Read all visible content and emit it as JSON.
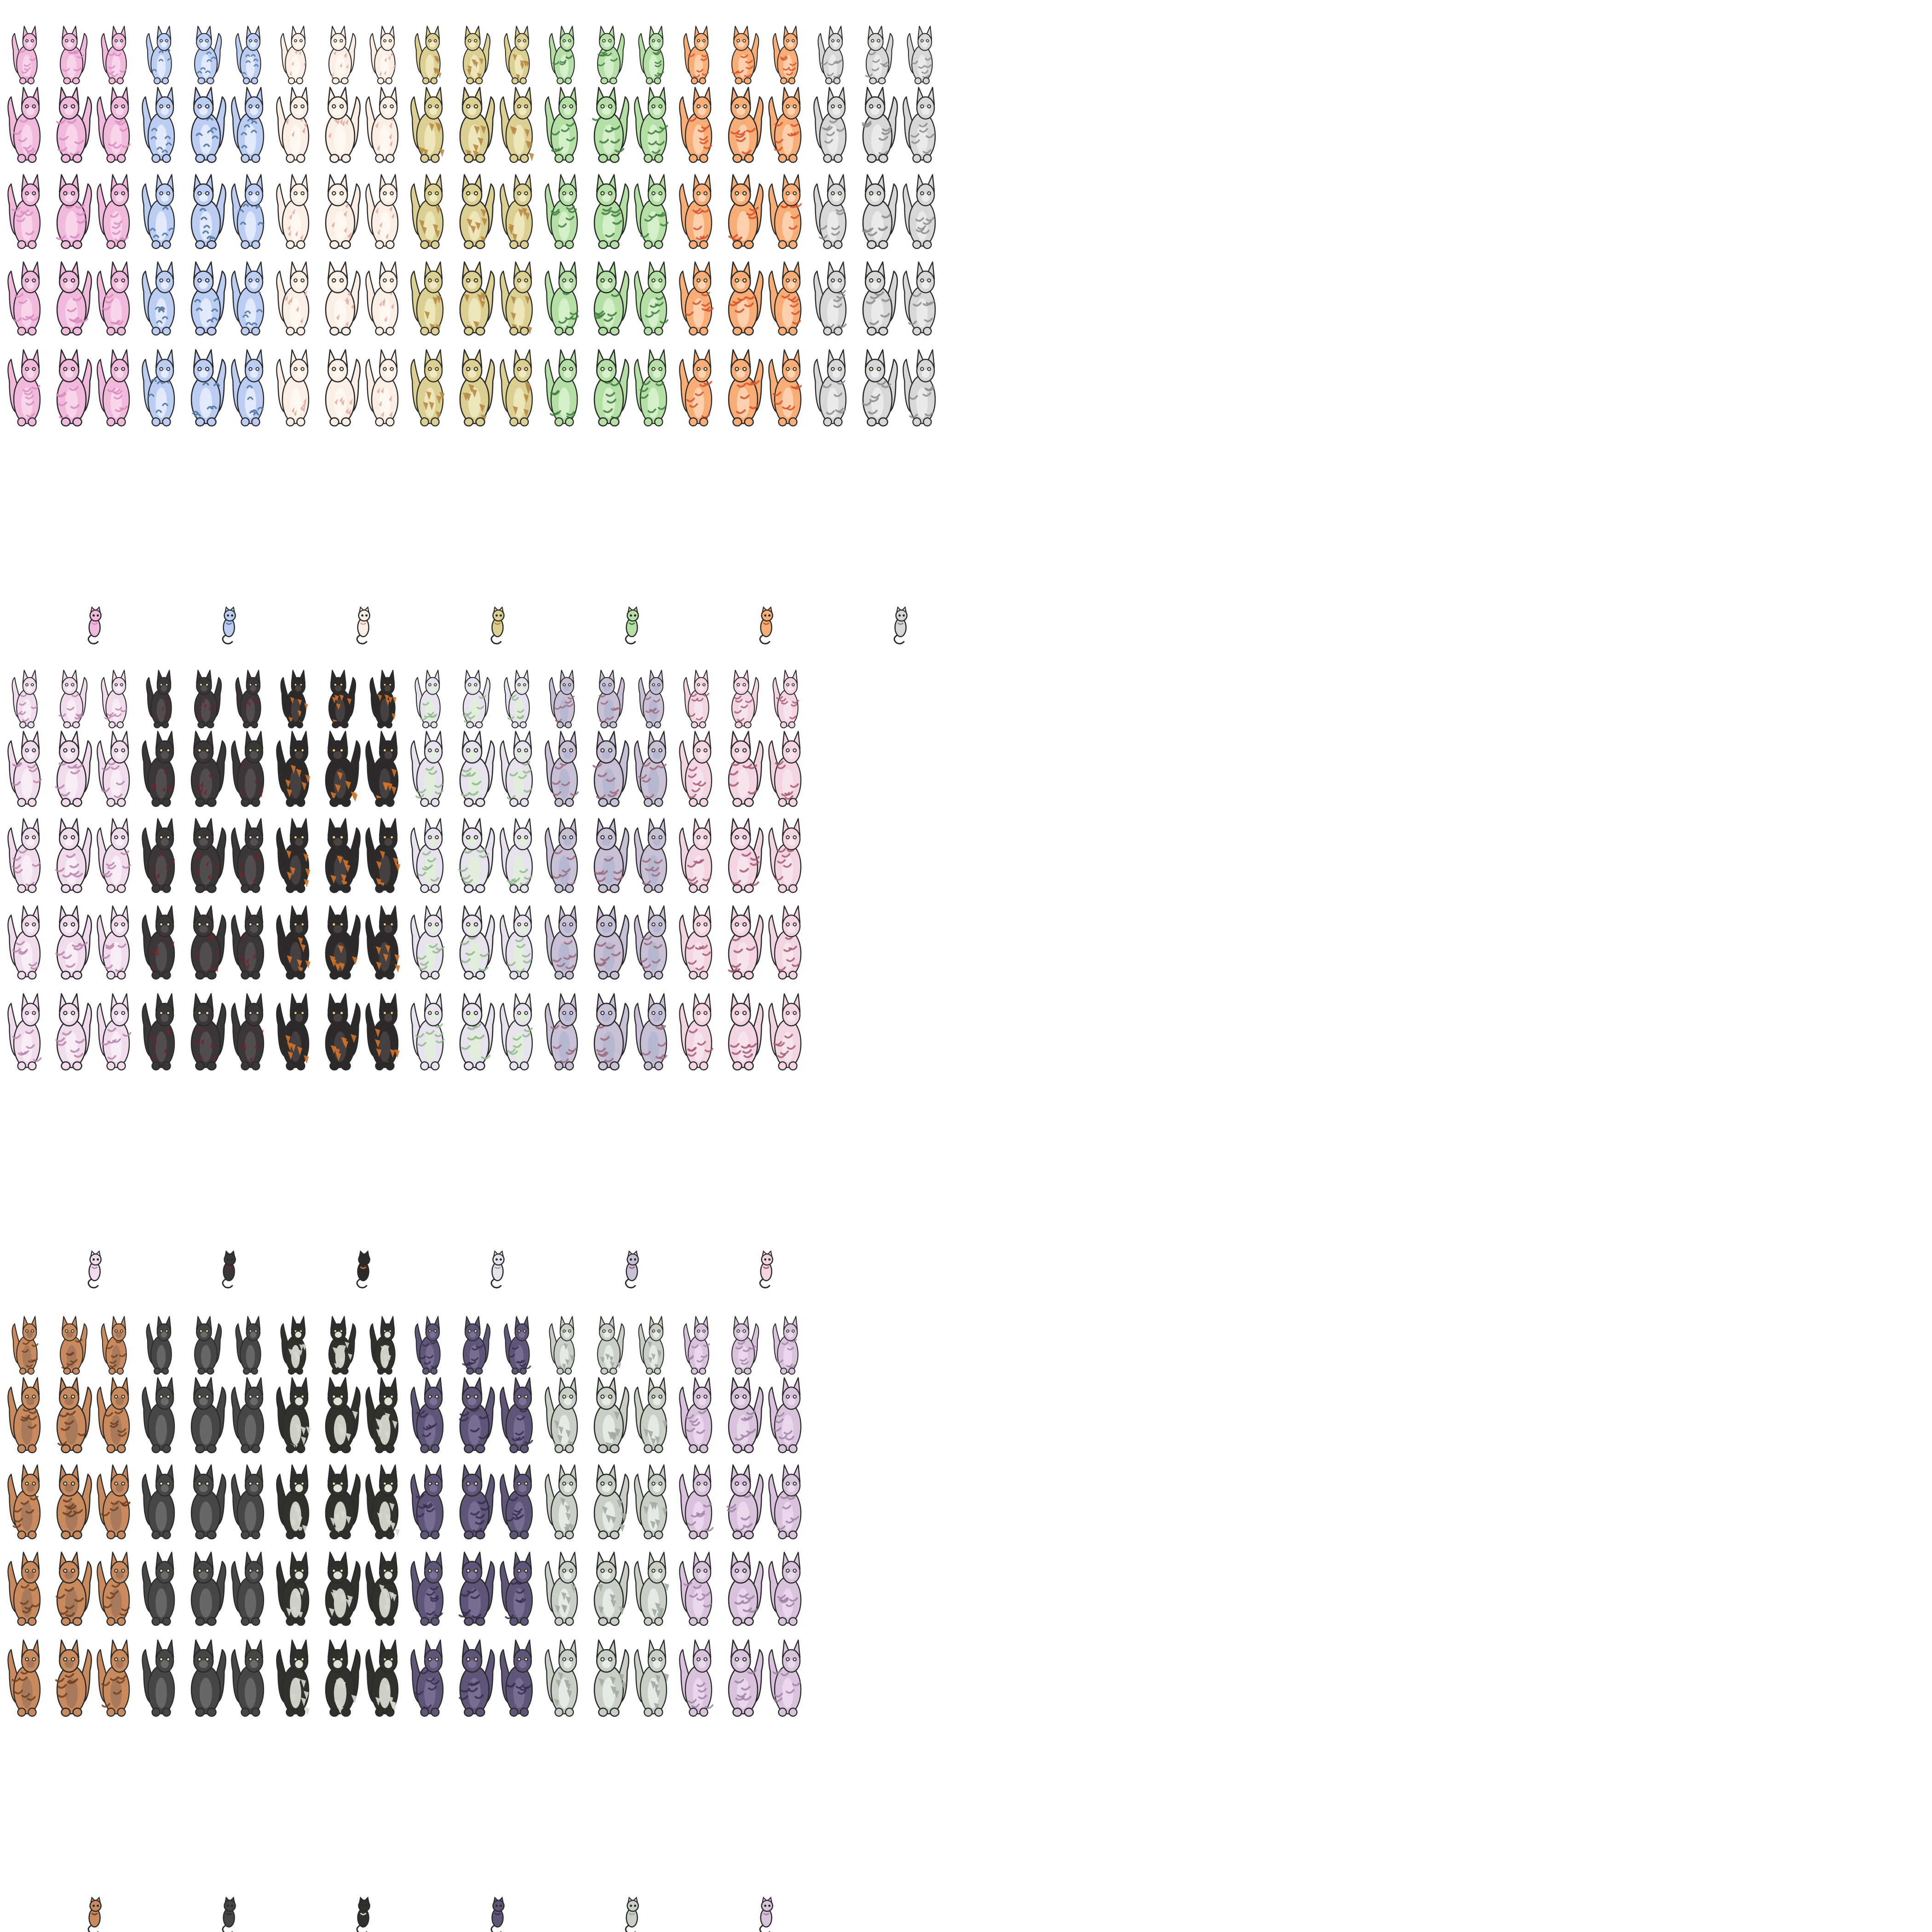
{
  "sheet": {
    "background": "#ffffff",
    "outline_color": "#2a2a2a",
    "pose_columns": 3,
    "pose_rows": 5,
    "blocks": [
      {
        "palettes": [
          {
            "name": "pink-tabby",
            "body": "#f1b9dc",
            "light": "#f8d8ec",
            "marking": "#d98bc0",
            "eye": "#f6c7e3",
            "pattern": "stripes"
          },
          {
            "name": "blue-lynx",
            "body": "#bccdf4",
            "light": "#e4ecfb",
            "marking": "#5a7fa8",
            "eye": "#d9e7ff",
            "pattern": "lynx"
          },
          {
            "name": "cream-spotted",
            "body": "#fbeee4",
            "light": "#fff8f1",
            "marking": "#e3a79b",
            "eye": "#f2efc9",
            "pattern": "spots"
          },
          {
            "name": "olive-patched",
            "body": "#dbcf92",
            "light": "#efe8c0",
            "marking": "#b88a45",
            "eye": "#f0ea9e",
            "pattern": "patches"
          },
          {
            "name": "green-tabby",
            "body": "#b4e0a5",
            "light": "#d9f1cf",
            "marking": "#3f7e3f",
            "eye": "#e2f7c6",
            "pattern": "stripes"
          },
          {
            "name": "orange-tabby",
            "body": "#f9ad76",
            "light": "#fdd4b4",
            "marking": "#d6522c",
            "eye": "#fde29f",
            "pattern": "stripes"
          },
          {
            "name": "gray-mackerel",
            "body": "#d7d7d7",
            "light": "#ececec",
            "marking": "#8c8c8c",
            "eye": "#f1f1c8",
            "pattern": "stripes"
          }
        ]
      },
      {
        "palettes": [
          {
            "name": "lilac-tabby",
            "body": "#f0dcec",
            "light": "#f8eef6",
            "marking": "#b884ad",
            "eye": "#f4e1ef",
            "pattern": "stripes"
          },
          {
            "name": "black-smoke",
            "body": "#3b3638",
            "light": "#555052",
            "marking": "#7a1f25",
            "eye": "#e7e2a3",
            "pattern": "spots"
          },
          {
            "name": "black-tortie",
            "body": "#2e2a2a",
            "light": "#4a4342",
            "marking": "#d2722a",
            "eye": "#f2d68a",
            "pattern": "patches"
          },
          {
            "name": "pale-green-tabby",
            "body": "#e8e1ee",
            "light": "#e0f0d8",
            "marking": "#8fb88a",
            "eye": "#e8f3d9",
            "pattern": "stripes"
          },
          {
            "name": "lavender-tabby",
            "body": "#c9c0d6",
            "light": "#b4b7d2",
            "marking": "#9c6a7e",
            "eye": "#ece4f2",
            "pattern": "stripes"
          },
          {
            "name": "rose-tabby",
            "body": "#f2d4e2",
            "light": "#f7e4ec",
            "marking": "#a85a72",
            "eye": "#f7e1ea",
            "pattern": "stripes"
          }
        ]
      },
      {
        "palettes": [
          {
            "name": "brown-tabby",
            "body": "#c98a5e",
            "light": "#a4775b",
            "marking": "#6d3f22",
            "eye": "#f1d49a",
            "pattern": "stripes"
          },
          {
            "name": "charcoal",
            "body": "#464646",
            "light": "#6a6a6a",
            "marking": "#2d2d2d",
            "eye": "#e6e6a8",
            "pattern": "solid"
          },
          {
            "name": "black-white-mottled",
            "body": "#2f312b",
            "light": "#dfe2d6",
            "marking": "#d6d9cc",
            "eye": "#e8e8b0",
            "pattern": "patches"
          },
          {
            "name": "indigo-tabby",
            "body": "#5e5578",
            "light": "#7a7194",
            "marking": "#372f4c",
            "eye": "#e2dcb8",
            "pattern": "stripes"
          },
          {
            "name": "silver-mottled",
            "body": "#c8d0c6",
            "light": "#e8ece6",
            "marking": "#a2aba0",
            "eye": "#eef0d2",
            "pattern": "patches"
          },
          {
            "name": "mauve-tabby",
            "body": "#d9c3dc",
            "light": "#ead9ec",
            "marking": "#9e84a3",
            "eye": "#f1e6f2",
            "pattern": "stripes"
          }
        ]
      }
    ]
  }
}
